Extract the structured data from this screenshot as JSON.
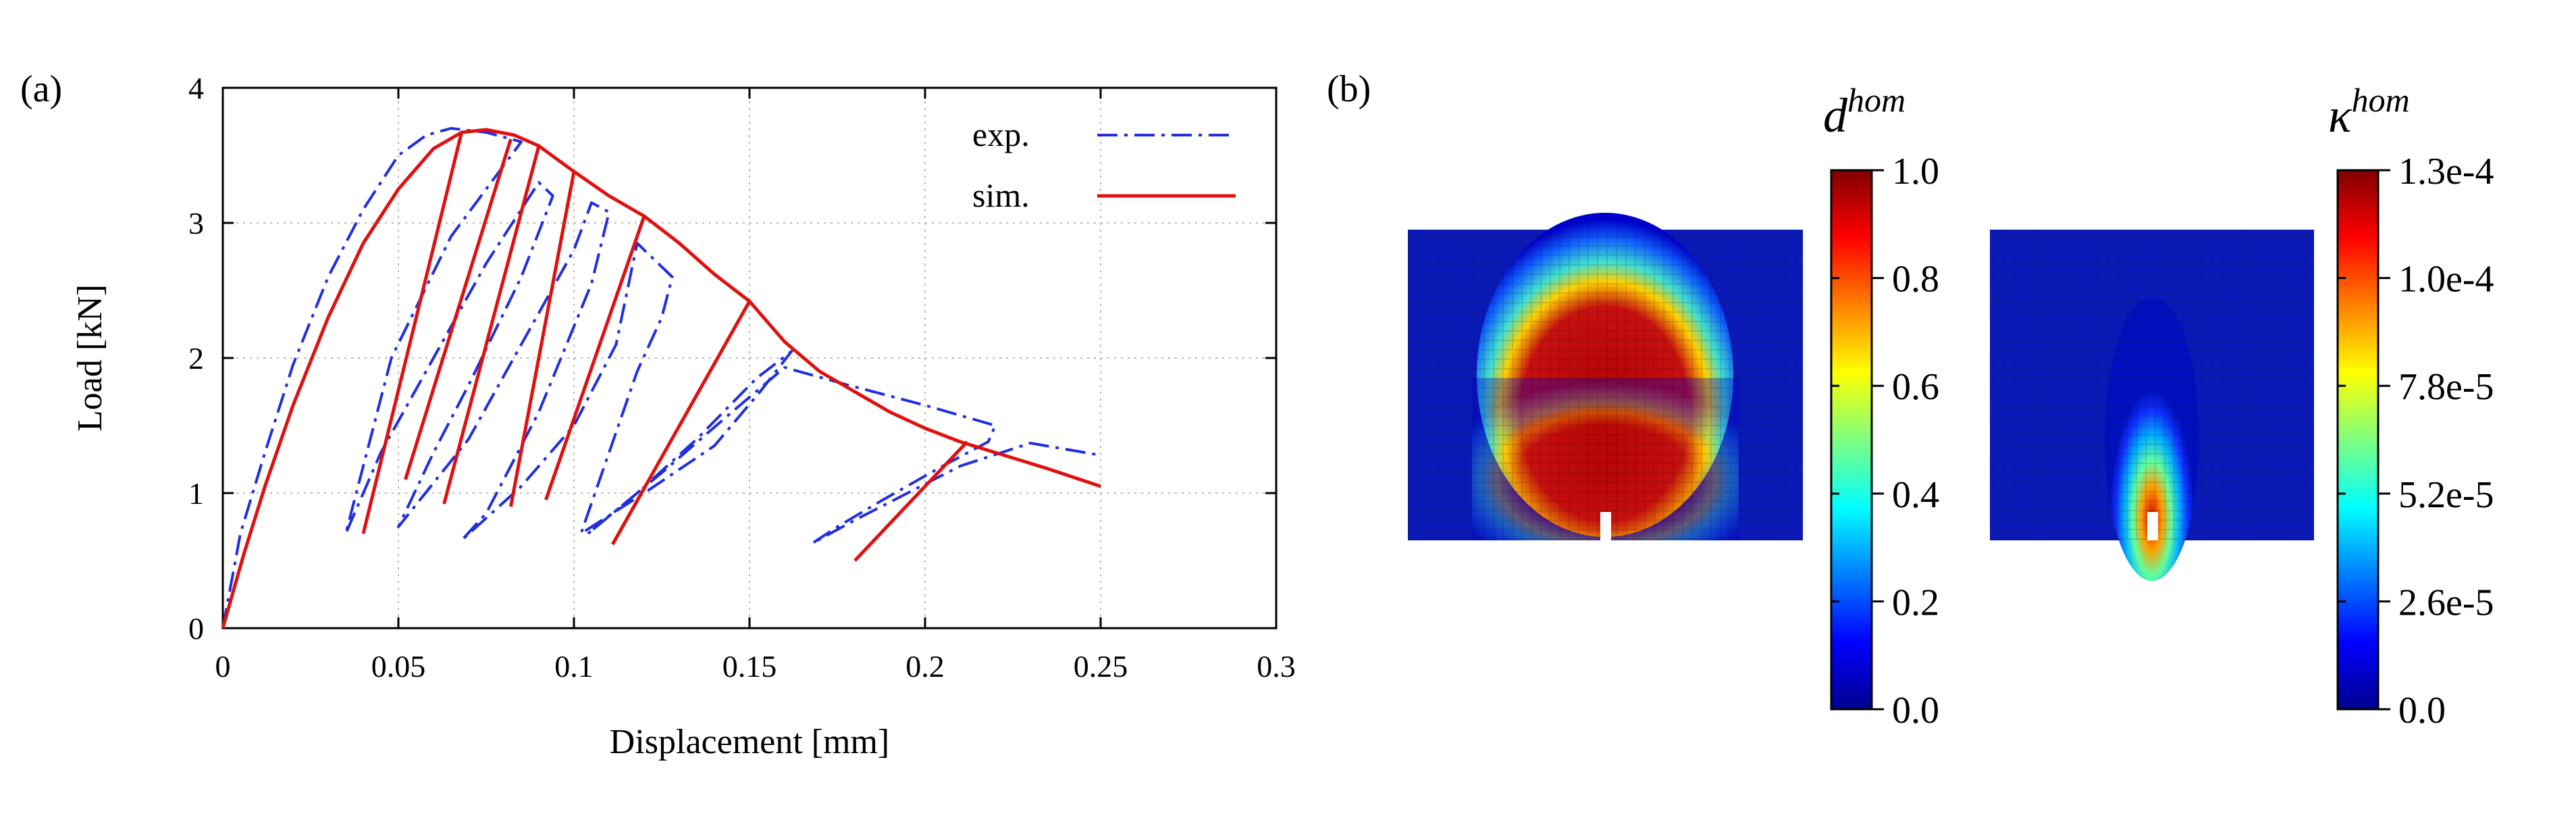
{
  "panels": {
    "a": "(a)",
    "b": "(b)"
  },
  "chart_data": [
    {
      "type": "line",
      "xlabel": "Displacement [mm]",
      "ylabel": "Load [kN]",
      "xlim": [
        0,
        0.3
      ],
      "ylim": [
        0,
        4
      ],
      "xticks": [
        "0",
        "0.05",
        "0.1",
        "0.15",
        "0.2",
        "0.25",
        "0.3"
      ],
      "yticks": [
        "0",
        "1",
        "2",
        "3",
        "4"
      ],
      "grid": true,
      "legend_position": "top-right",
      "series": [
        {
          "name": "exp.",
          "color": "#1f2fe0",
          "style": "dash-dot",
          "points": [
            [
              0,
              0
            ],
            [
              0.005,
              0.7
            ],
            [
              0.012,
              1.3
            ],
            [
              0.02,
              1.95
            ],
            [
              0.03,
              2.6
            ],
            [
              0.04,
              3.1
            ],
            [
              0.05,
              3.5
            ],
            [
              0.058,
              3.65
            ],
            [
              0.065,
              3.7
            ],
            [
              0.075,
              3.67
            ],
            [
              0.085,
              3.6
            ],
            [
              0.065,
              2.9
            ],
            [
              0.048,
              2.0
            ],
            [
              0.04,
              1.2
            ],
            [
              0.035,
              0.7
            ],
            [
              0.045,
              1.3
            ],
            [
              0.06,
              2.0
            ],
            [
              0.075,
              2.7
            ],
            [
              0.09,
              3.3
            ],
            [
              0.094,
              3.2
            ],
            [
              0.085,
              2.6
            ],
            [
              0.07,
              1.8
            ],
            [
              0.06,
              1.3
            ],
            [
              0.05,
              0.75
            ],
            [
              0.07,
              1.4
            ],
            [
              0.085,
              2.1
            ],
            [
              0.1,
              2.8
            ],
            [
              0.105,
              3.15
            ],
            [
              0.11,
              3.08
            ],
            [
              0.105,
              2.55
            ],
            [
              0.09,
              1.6
            ],
            [
              0.075,
              0.85
            ],
            [
              0.068,
              0.65
            ],
            [
              0.085,
              1.05
            ],
            [
              0.1,
              1.5
            ],
            [
              0.112,
              2.1
            ],
            [
              0.118,
              2.85
            ],
            [
              0.128,
              2.6
            ],
            [
              0.125,
              2.3
            ],
            [
              0.118,
              1.9
            ],
            [
              0.11,
              1.3
            ],
            [
              0.102,
              0.7
            ],
            [
              0.12,
              1.0
            ],
            [
              0.14,
              1.35
            ],
            [
              0.153,
              1.75
            ],
            [
              0.162,
              2.05
            ],
            [
              0.152,
              1.85
            ],
            [
              0.135,
              1.4
            ],
            [
              0.118,
              1.0
            ],
            [
              0.104,
              0.7
            ],
            [
              0.125,
              1.15
            ],
            [
              0.145,
              1.6
            ],
            [
              0.16,
              1.93
            ],
            [
              0.178,
              1.8
            ],
            [
              0.2,
              1.65
            ],
            [
              0.22,
              1.5
            ],
            [
              0.218,
              1.38
            ],
            [
              0.205,
              1.2
            ],
            [
              0.188,
              0.95
            ],
            [
              0.175,
              0.75
            ],
            [
              0.168,
              0.63
            ],
            [
              0.18,
              0.8
            ],
            [
              0.195,
              1.0
            ],
            [
              0.21,
              1.2
            ],
            [
              0.23,
              1.37
            ],
            [
              0.25,
              1.28
            ]
          ]
        },
        {
          "name": "sim.",
          "color": "#e01010",
          "style": "solid",
          "points": [
            [
              0,
              0
            ],
            [
              0.006,
              0.55
            ],
            [
              0.012,
              1.05
            ],
            [
              0.02,
              1.65
            ],
            [
              0.03,
              2.3
            ],
            [
              0.04,
              2.85
            ],
            [
              0.05,
              3.25
            ],
            [
              0.06,
              3.55
            ],
            [
              0.068,
              3.67
            ],
            [
              0.075,
              3.69
            ],
            [
              0.083,
              3.65
            ],
            [
              0.09,
              3.57
            ],
            [
              0.1,
              3.38
            ],
            [
              0.11,
              3.2
            ],
            [
              0.12,
              3.05
            ],
            [
              0.13,
              2.85
            ],
            [
              0.14,
              2.62
            ],
            [
              0.15,
              2.42
            ],
            [
              0.16,
              2.12
            ],
            [
              0.17,
              1.9
            ],
            [
              0.18,
              1.75
            ],
            [
              0.19,
              1.6
            ],
            [
              0.2,
              1.48
            ],
            [
              0.21,
              1.38
            ],
            [
              0.22,
              1.3
            ],
            [
              0.235,
              1.18
            ],
            [
              0.25,
              1.05
            ]
          ]
        }
      ],
      "unloading_segments": [
        {
          "from": [
            0.068,
            3.67
          ],
          "to": [
            0.04,
            0.7
          ]
        },
        {
          "from": [
            0.082,
            3.62
          ],
          "to": [
            0.052,
            1.1
          ]
        },
        {
          "from": [
            0.09,
            3.57
          ],
          "to": [
            0.063,
            0.92
          ]
        },
        {
          "from": [
            0.1,
            3.38
          ],
          "to": [
            0.082,
            0.9
          ]
        },
        {
          "from": [
            0.12,
            3.05
          ],
          "to": [
            0.092,
            0.95
          ]
        },
        {
          "from": [
            0.15,
            2.42
          ],
          "to": [
            0.111,
            0.62
          ]
        },
        {
          "from": [
            0.212,
            1.38
          ],
          "to": [
            0.18,
            0.5
          ]
        }
      ]
    },
    {
      "type": "heatmap",
      "title": "d",
      "title_superscript": "hom",
      "colorbar_ticks": [
        "1.0",
        "0.8",
        "0.6",
        "0.4",
        "0.2",
        "0.0"
      ],
      "range": [
        0.0,
        1.0
      ]
    },
    {
      "type": "heatmap",
      "title": "κ",
      "title_superscript": "hom",
      "colorbar_ticks": [
        "1.3e-4",
        "1.0e-4",
        "7.8e-5",
        "5.2e-5",
        "2.6e-5",
        "0.0"
      ],
      "range": [
        0.0,
        0.00013
      ]
    }
  ]
}
